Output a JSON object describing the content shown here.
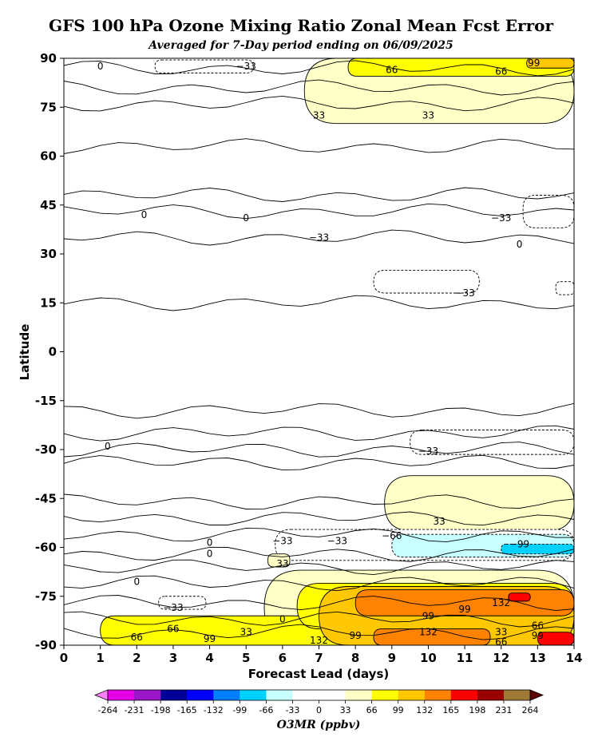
{
  "chart_data": {
    "type": "heatmap",
    "title": "GFS 100 hPa Ozone Mixing Ratio Zonal Mean Fcst Error",
    "subtitle": "Averaged for 7-Day period ending on 06/09/2025",
    "xlabel": "Forecast Lead (days)",
    "ylabel": "Latitude",
    "xlim": [
      0,
      14
    ],
    "ylim": [
      -90,
      90
    ],
    "x_ticks": [
      "0",
      "1",
      "2",
      "3",
      "4",
      "5",
      "6",
      "7",
      "8",
      "9",
      "10",
      "11",
      "12",
      "13",
      "14"
    ],
    "y_ticks": [
      "90",
      "75",
      "60",
      "45",
      "30",
      "15",
      "0",
      "-15",
      "-30",
      "-45",
      "-60",
      "-75",
      "-90"
    ],
    "colorbar": {
      "label": "O3MR (ppbv)",
      "levels": [
        "-264",
        "-231",
        "-198",
        "-165",
        "-132",
        "-99",
        "-66",
        "-33",
        "0",
        "33",
        "66",
        "99",
        "132",
        "165",
        "198",
        "231",
        "264"
      ],
      "colors": [
        "#e600e6",
        "#9a17c8",
        "#000099",
        "#0000ff",
        "#0080ff",
        "#00d2ff",
        "#c8ffff",
        "#ffffff",
        "#ffffff",
        "#ffffc8",
        "#ffff00",
        "#ffc800",
        "#ff8200",
        "#ff0000",
        "#990000",
        "#9e7a35"
      ],
      "under_color": "#ff80ff",
      "over_color": "#5c0000"
    },
    "regions": [
      {
        "x": [
          2.5,
          5.2
        ],
        "y": [
          85.5,
          89.5
        ],
        "value": -33
      },
      {
        "x": [
          6.6,
          14
        ],
        "y": [
          70,
          90
        ],
        "value": 33
      },
      {
        "x": [
          7.8,
          14
        ],
        "y": [
          84.5,
          90
        ],
        "value": 66
      },
      {
        "x": [
          12.7,
          14
        ],
        "y": [
          87,
          90
        ],
        "value": 99
      },
      {
        "x": [
          12.6,
          14
        ],
        "y": [
          38,
          48
        ],
        "value": -33
      },
      {
        "x": [
          8.5,
          11.4
        ],
        "y": [
          18,
          25
        ],
        "value": -33
      },
      {
        "x": [
          13.5,
          14
        ],
        "y": [
          17.5,
          21.5
        ],
        "value": -33
      },
      {
        "x": [
          9.5,
          14
        ],
        "y": [
          -31.5,
          -24
        ],
        "value": -33
      },
      {
        "x": [
          8.8,
          14
        ],
        "y": [
          -55,
          -38
        ],
        "value": 33
      },
      {
        "x": [
          5.8,
          14
        ],
        "y": [
          -64,
          -54.5
        ],
        "value": -33
      },
      {
        "x": [
          9,
          14
        ],
        "y": [
          -63,
          -56
        ],
        "value": -66
      },
      {
        "x": [
          12,
          14
        ],
        "y": [
          -62,
          -59
        ],
        "value": -99
      },
      {
        "x": [
          5.6,
          6.2
        ],
        "y": [
          -66,
          -62
        ],
        "value": 33
      },
      {
        "x": [
          2.6,
          3.9
        ],
        "y": [
          -79,
          -75
        ],
        "value": -33
      },
      {
        "x": [
          5.5,
          14
        ],
        "y": [
          -90,
          -67
        ],
        "value": 33
      },
      {
        "x": [
          1,
          14
        ],
        "y": [
          -90,
          -81
        ],
        "value": 66
      },
      {
        "x": [
          6.4,
          14
        ],
        "y": [
          -85,
          -71
        ],
        "value": 66
      },
      {
        "x": [
          7,
          14
        ],
        "y": [
          -90,
          -72
        ],
        "value": 99
      },
      {
        "x": [
          8,
          14
        ],
        "y": [
          -81,
          -73
        ],
        "value": 132
      },
      {
        "x": [
          8.5,
          11.7
        ],
        "y": [
          -90,
          -85
        ],
        "value": 132
      },
      {
        "x": [
          12.2,
          12.8
        ],
        "y": [
          -76.5,
          -74
        ],
        "value": 165
      },
      {
        "x": [
          13,
          14
        ],
        "y": [
          -90,
          -86
        ],
        "value": 165
      }
    ],
    "contour_labels": [
      {
        "text": "0",
        "x": 1.0,
        "y": 87.5
      },
      {
        "text": "−33",
        "x": 5.0,
        "y": 87.5
      },
      {
        "text": "66",
        "x": 9.0,
        "y": 86.5
      },
      {
        "text": "66",
        "x": 12.0,
        "y": 86
      },
      {
        "text": "99",
        "x": 12.9,
        "y": 88.5
      },
      {
        "text": "33",
        "x": 7.0,
        "y": 72.5
      },
      {
        "text": "33",
        "x": 10.0,
        "y": 72.5
      },
      {
        "text": "0",
        "x": 2.2,
        "y": 42
      },
      {
        "text": "0",
        "x": 5.0,
        "y": 41
      },
      {
        "text": "−33",
        "x": 7.0,
        "y": 35
      },
      {
        "text": "−33",
        "x": 12.0,
        "y": 41
      },
      {
        "text": "0",
        "x": 12.5,
        "y": 33
      },
      {
        "text": "−33",
        "x": 11.0,
        "y": 18
      },
      {
        "text": "0",
        "x": 1.2,
        "y": -29
      },
      {
        "text": "−33",
        "x": 10.0,
        "y": -30.5
      },
      {
        "text": "33",
        "x": 10.3,
        "y": -52
      },
      {
        "text": "−66",
        "x": 9.0,
        "y": -56.5
      },
      {
        "text": "−33",
        "x": 6.0,
        "y": -58
      },
      {
        "text": "−33",
        "x": 7.5,
        "y": -58
      },
      {
        "text": "−99",
        "x": 12.5,
        "y": -59
      },
      {
        "text": "0",
        "x": 4.0,
        "y": -58.5
      },
      {
        "text": "0",
        "x": 4.0,
        "y": -62
      },
      {
        "text": "33",
        "x": 6.0,
        "y": -65
      },
      {
        "text": "0",
        "x": 2.0,
        "y": -70.5
      },
      {
        "text": "−33",
        "x": 3.0,
        "y": -78.5
      },
      {
        "text": "0",
        "x": 6.0,
        "y": -82
      },
      {
        "text": "132",
        "x": 12.0,
        "y": -77
      },
      {
        "text": "99",
        "x": 11.0,
        "y": -79
      },
      {
        "text": "99",
        "x": 10.0,
        "y": -81
      },
      {
        "text": "66",
        "x": 13.0,
        "y": -84
      },
      {
        "text": "66",
        "x": 3.0,
        "y": -85
      },
      {
        "text": "66",
        "x": 2.0,
        "y": -87.5
      },
      {
        "text": "99",
        "x": 4.0,
        "y": -88
      },
      {
        "text": "33",
        "x": 5.0,
        "y": -86
      },
      {
        "text": "132",
        "x": 7.0,
        "y": -88.5
      },
      {
        "text": "99",
        "x": 8.0,
        "y": -87
      },
      {
        "text": "132",
        "x": 10.0,
        "y": -86
      },
      {
        "text": "33",
        "x": 12.0,
        "y": -86
      },
      {
        "text": "66",
        "x": 12.0,
        "y": -89
      },
      {
        "text": "99",
        "x": 13.0,
        "y": -87
      }
    ]
  }
}
